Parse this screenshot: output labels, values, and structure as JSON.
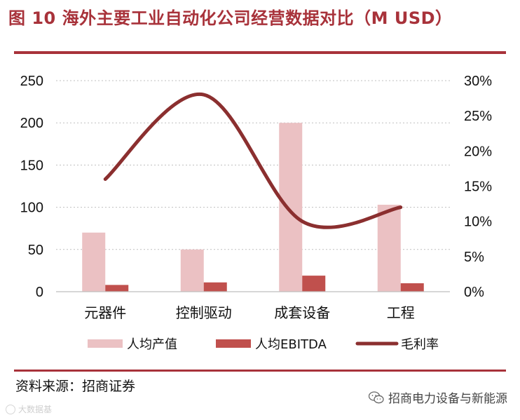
{
  "figure": {
    "title": "图 10 海外主要工业自动化公司经营数据对比（M USD）",
    "source": "资料来源：招商证券",
    "wechat_account": "招商电力设备与新能源",
    "watermark": "大数据基"
  },
  "colors": {
    "title": "#a8323a",
    "rule": "#a8323a",
    "bar_output": "#ebc1c3",
    "bar_ebitda": "#c0504d",
    "line_margin": "#8b2f2f",
    "grid": "#bfbfbf"
  },
  "chart_data": {
    "type": "bar",
    "categories": [
      "元器件",
      "控制驱动",
      "成套设备",
      "工程"
    ],
    "series": [
      {
        "name": "人均产值",
        "type": "bar",
        "axis": "left",
        "values": [
          70,
          50,
          200,
          103
        ]
      },
      {
        "name": "人均EBITDA",
        "type": "bar",
        "axis": "left",
        "values": [
          8,
          11,
          19,
          10
        ]
      },
      {
        "name": "毛利率",
        "type": "line",
        "axis": "right",
        "smooth": true,
        "values": [
          16,
          28,
          10,
          12
        ]
      }
    ],
    "y_left": {
      "min": 0,
      "max": 250,
      "ticks": [
        "0",
        "50",
        "100",
        "150",
        "200",
        "250"
      ]
    },
    "y_right": {
      "min": 0,
      "max": 30,
      "ticks": [
        "0%",
        "5%",
        "10%",
        "15%",
        "20%",
        "25%",
        "30%"
      ]
    },
    "grid": true,
    "legend_position": "bottom"
  }
}
